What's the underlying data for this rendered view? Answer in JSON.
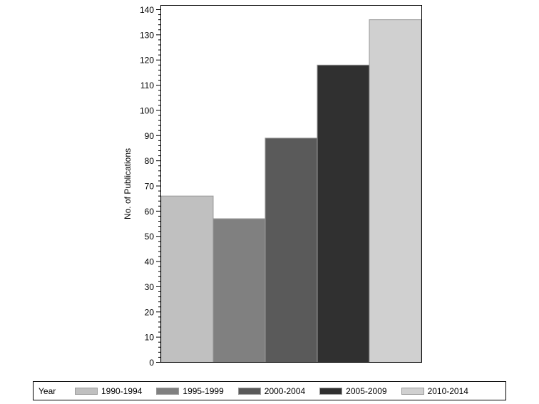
{
  "chart_data": {
    "type": "bar",
    "title": "",
    "xlabel": "",
    "ylabel": "No. of Publications",
    "ylim": [
      0,
      140
    ],
    "yticks": [
      0,
      10,
      20,
      30,
      40,
      50,
      60,
      70,
      80,
      90,
      100,
      110,
      120,
      130,
      140
    ],
    "minor_ticks_per_major": 5,
    "grid": false,
    "legend_position": "bottom",
    "legend_title": "Year",
    "categories": [
      "1990-1994",
      "1995-1999",
      "2000-2004",
      "2005-2009",
      "2010-2014"
    ],
    "values": [
      66,
      57,
      89,
      118,
      136
    ],
    "colors": [
      "#c0c0c0",
      "#808080",
      "#5a5a5a",
      "#303030",
      "#d0d0d0"
    ]
  },
  "legend": {
    "title": "Year",
    "items": [
      {
        "label": "1990-1994",
        "color": "#c0c0c0"
      },
      {
        "label": "1995-1999",
        "color": "#808080"
      },
      {
        "label": "2000-2004",
        "color": "#5a5a5a"
      },
      {
        "label": "2005-2009",
        "color": "#303030"
      },
      {
        "label": "2010-2014",
        "color": "#d0d0d0"
      }
    ]
  }
}
